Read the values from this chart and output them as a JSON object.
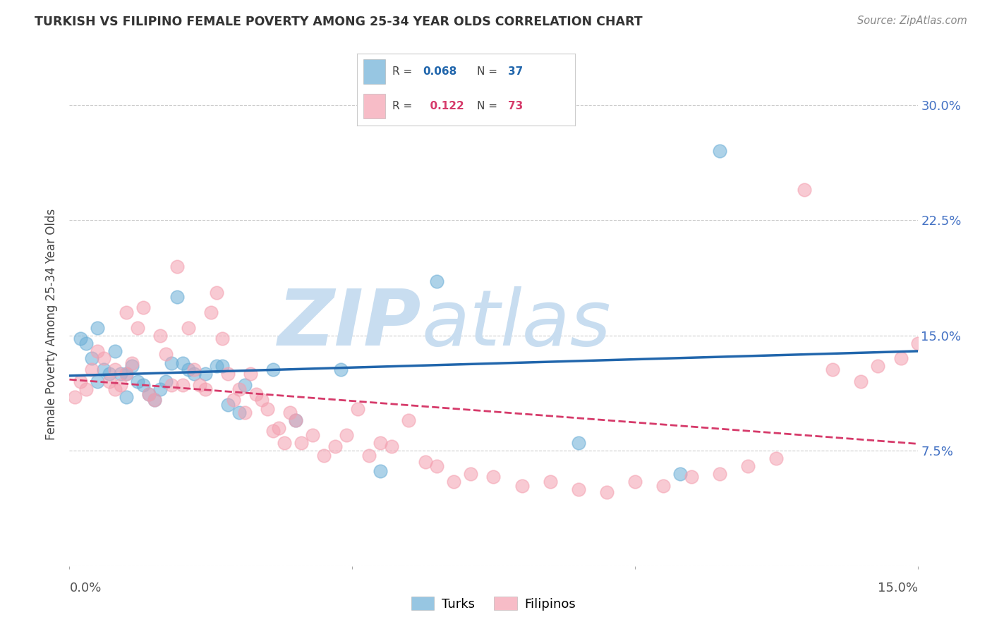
{
  "title": "TURKISH VS FILIPINO FEMALE POVERTY AMONG 25-34 YEAR OLDS CORRELATION CHART",
  "source": "Source: ZipAtlas.com",
  "ylabel": "Female Poverty Among 25-34 Year Olds",
  "xlim": [
    0.0,
    0.15
  ],
  "ylim": [
    0.0,
    0.315
  ],
  "yticks": [
    0.0,
    0.075,
    0.15,
    0.225,
    0.3
  ],
  "ytick_labels": [
    "",
    "7.5%",
    "15.0%",
    "22.5%",
    "30.0%"
  ],
  "xticks": [
    0.0,
    0.05,
    0.1,
    0.15
  ],
  "xtick_labels": [
    "0.0%",
    "",
    "",
    "15.0%"
  ],
  "turks_R": 0.068,
  "turks_N": 37,
  "filipinos_R": 0.122,
  "filipinos_N": 73,
  "turks_color": "#6baed6",
  "filipinos_color": "#f4a0b0",
  "turks_line_color": "#2166ac",
  "filipinos_line_color": "#d63a6a",
  "background_color": "#ffffff",
  "watermark_color": "#c8ddf0",
  "turks_x": [
    0.002,
    0.003,
    0.004,
    0.005,
    0.005,
    0.006,
    0.007,
    0.008,
    0.009,
    0.01,
    0.01,
    0.011,
    0.012,
    0.013,
    0.014,
    0.015,
    0.016,
    0.017,
    0.018,
    0.019,
    0.02,
    0.021,
    0.022,
    0.024,
    0.026,
    0.027,
    0.028,
    0.03,
    0.031,
    0.036,
    0.04,
    0.048,
    0.055,
    0.065,
    0.09,
    0.108,
    0.115
  ],
  "turks_y": [
    0.148,
    0.145,
    0.135,
    0.155,
    0.12,
    0.128,
    0.125,
    0.14,
    0.125,
    0.125,
    0.11,
    0.13,
    0.12,
    0.118,
    0.112,
    0.108,
    0.115,
    0.12,
    0.132,
    0.175,
    0.132,
    0.128,
    0.125,
    0.125,
    0.13,
    0.13,
    0.105,
    0.1,
    0.118,
    0.128,
    0.095,
    0.128,
    0.062,
    0.185,
    0.08,
    0.06,
    0.27
  ],
  "filipinos_x": [
    0.001,
    0.002,
    0.003,
    0.004,
    0.005,
    0.006,
    0.007,
    0.008,
    0.008,
    0.009,
    0.01,
    0.01,
    0.011,
    0.012,
    0.013,
    0.014,
    0.015,
    0.016,
    0.017,
    0.018,
    0.019,
    0.02,
    0.021,
    0.022,
    0.023,
    0.024,
    0.025,
    0.026,
    0.027,
    0.028,
    0.029,
    0.03,
    0.031,
    0.032,
    0.033,
    0.034,
    0.035,
    0.036,
    0.037,
    0.038,
    0.039,
    0.04,
    0.041,
    0.043,
    0.045,
    0.047,
    0.049,
    0.051,
    0.053,
    0.055,
    0.057,
    0.06,
    0.063,
    0.065,
    0.068,
    0.071,
    0.075,
    0.08,
    0.085,
    0.09,
    0.095,
    0.1,
    0.105,
    0.11,
    0.115,
    0.12,
    0.125,
    0.13,
    0.135,
    0.14,
    0.143,
    0.147,
    0.15
  ],
  "filipinos_y": [
    0.11,
    0.12,
    0.115,
    0.128,
    0.14,
    0.135,
    0.12,
    0.115,
    0.128,
    0.118,
    0.165,
    0.125,
    0.132,
    0.155,
    0.168,
    0.112,
    0.108,
    0.15,
    0.138,
    0.118,
    0.195,
    0.118,
    0.155,
    0.128,
    0.118,
    0.115,
    0.165,
    0.178,
    0.148,
    0.125,
    0.108,
    0.115,
    0.1,
    0.125,
    0.112,
    0.108,
    0.102,
    0.088,
    0.09,
    0.08,
    0.1,
    0.095,
    0.08,
    0.085,
    0.072,
    0.078,
    0.085,
    0.102,
    0.072,
    0.08,
    0.078,
    0.095,
    0.068,
    0.065,
    0.055,
    0.06,
    0.058,
    0.052,
    0.055,
    0.05,
    0.048,
    0.055,
    0.052,
    0.058,
    0.06,
    0.065,
    0.07,
    0.245,
    0.128,
    0.12,
    0.13,
    0.135,
    0.145
  ]
}
